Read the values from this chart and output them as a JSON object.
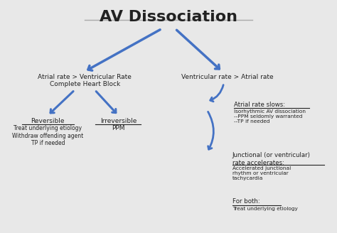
{
  "title": "AV Dissociation",
  "title_fontsize": 16,
  "title_fontweight": "bold",
  "bg_color": "#e8e8e8",
  "arrow_color": "#4472C4",
  "text_color": "#222222",
  "left_branch_label": "Atrial rate > Ventricular Rate\nComplete Heart Block",
  "right_branch_label": "Ventricular rate > Atrial rate",
  "reversible_label": "Reversible",
  "reversible_body": "Treat underlying etiology\nWithdraw offending agent\nTP if needed",
  "irreversible_label": "Irreversible",
  "irreversible_body": "PPM",
  "atrial_slows_label": "Atrial rate slows:",
  "atrial_slows_body": "Isorhythmic AV dissociation\n--PPM seldomly warranted\n--TP if needed",
  "junctional_label": "Junctional (or ventricular)\nrate accelerates:",
  "junctional_body": "Accelerated junctional\nrhythm or ventricular\ntachycardia",
  "forboth_label": "For both:",
  "forboth_body": "Treat underlying etiology"
}
